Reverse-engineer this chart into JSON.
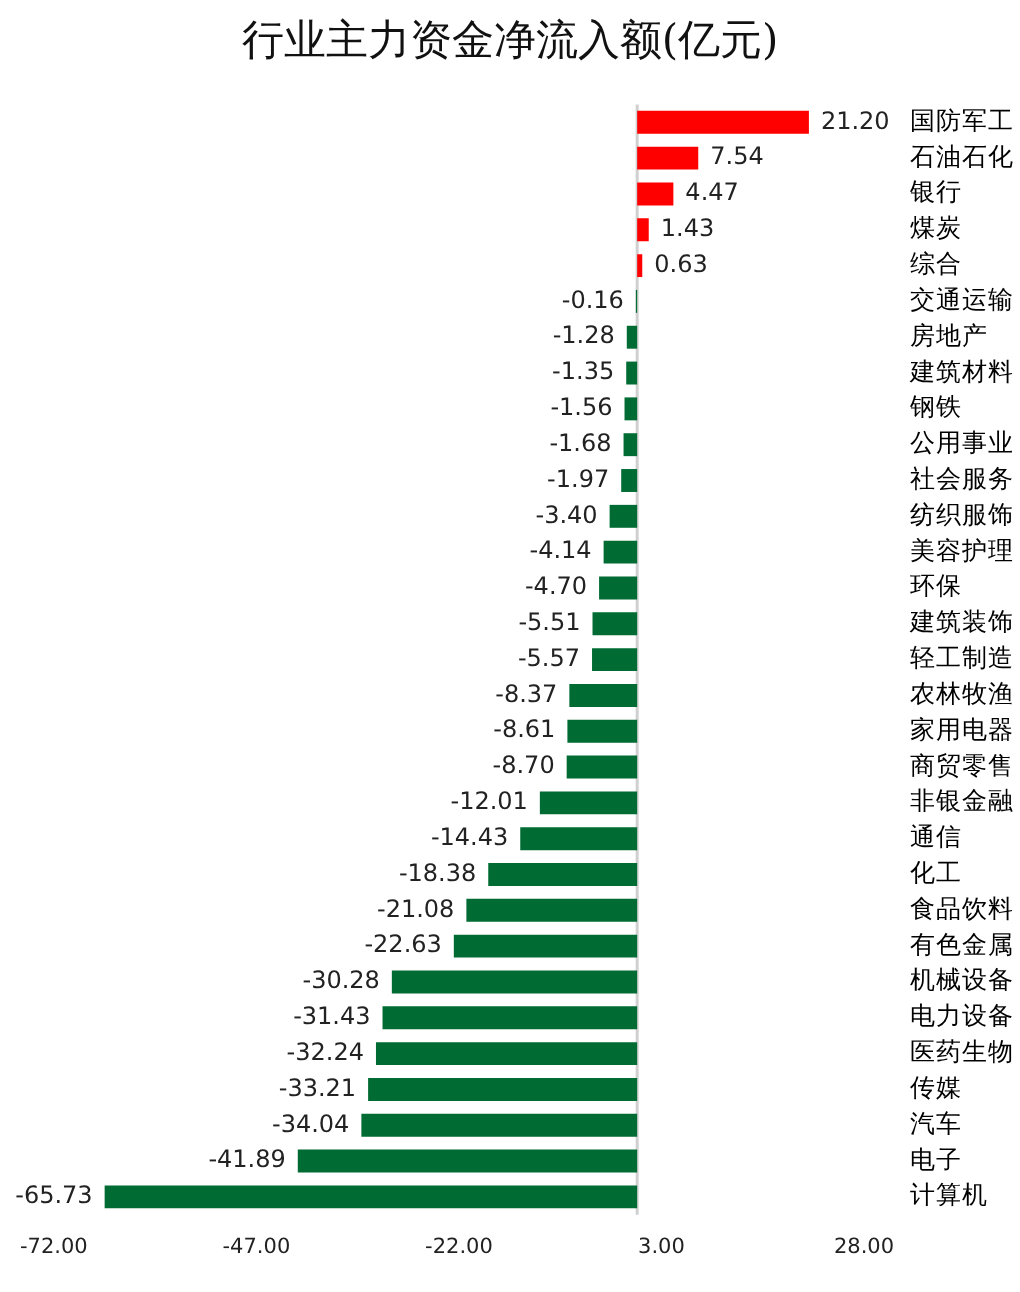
{
  "chart_data": {
    "type": "bar",
    "title": "行业主力资金净流入额(亿元)",
    "orientation": "horizontal",
    "categories": [
      "国防军工",
      "石油石化",
      "银行",
      "煤炭",
      "综合",
      "交通运输",
      "房地产",
      "建筑材料",
      "钢铁",
      "公用事业",
      "社会服务",
      "纺织服饰",
      "美容护理",
      "环保",
      "建筑装饰",
      "轻工制造",
      "农林牧渔",
      "家用电器",
      "商贸零售",
      "非银金融",
      "通信",
      "化工",
      "食品饮料",
      "有色金属",
      "机械设备",
      "电力设备",
      "医药生物",
      "传媒",
      "汽车",
      "电子",
      "计算机"
    ],
    "values": [
      21.2,
      7.54,
      4.47,
      1.43,
      0.63,
      -0.16,
      -1.28,
      -1.35,
      -1.56,
      -1.68,
      -1.97,
      -3.4,
      -4.14,
      -4.7,
      -5.51,
      -5.57,
      -8.37,
      -8.61,
      -8.7,
      -12.01,
      -14.43,
      -18.38,
      -21.08,
      -22.63,
      -30.28,
      -31.43,
      -32.24,
      -33.21,
      -34.04,
      -41.89,
      -65.73
    ],
    "value_labels": [
      "21.20",
      "7.54",
      "4.47",
      "1.43",
      "0.63",
      "-0.16",
      "-1.28",
      "-1.35",
      "-1.56",
      "-1.68",
      "-1.97",
      "-3.40",
      "-4.14",
      "-4.70",
      "-5.51",
      "-5.57",
      "-8.37",
      "-8.61",
      "-8.70",
      "-12.01",
      "-14.43",
      "-18.38",
      "-21.08",
      "-22.63",
      "-30.28",
      "-31.43",
      "-32.24",
      "-33.21",
      "-34.04",
      "-41.89",
      "-65.73"
    ],
    "colors": [
      "#ff0000",
      "#ff0000",
      "#ff0000",
      "#ff0000",
      "#ff0000",
      "#006b33",
      "#006b33",
      "#006b33",
      "#006b33",
      "#006b33",
      "#006b33",
      "#006b33",
      "#006b33",
      "#006b33",
      "#006b33",
      "#006b33",
      "#006b33",
      "#006b33",
      "#006b33",
      "#006b33",
      "#006b33",
      "#006b33",
      "#006b33",
      "#006b33",
      "#006b33",
      "#006b33",
      "#006b33",
      "#006b33",
      "#006b33",
      "#006b33",
      "#006b33"
    ],
    "xlim": [
      -72,
      28
    ],
    "xticks": [
      {
        "value": -72,
        "label": "-72.00"
      },
      {
        "value": -47,
        "label": "-47.00"
      },
      {
        "value": -22,
        "label": "-22.00"
      },
      {
        "value": 3,
        "label": "3.00"
      },
      {
        "value": 28,
        "label": "28.00"
      }
    ]
  }
}
